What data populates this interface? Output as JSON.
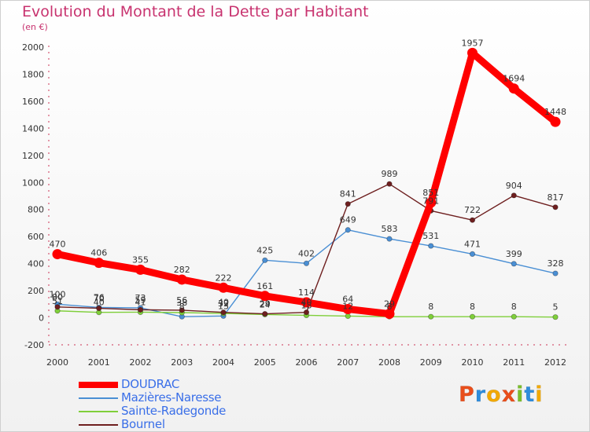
{
  "title": "Evolution du Montant de la Dette par Habitant",
  "unit": "(en €)",
  "logo": {
    "letters": [
      "P",
      "r",
      "o",
      "x",
      "i",
      "t",
      "i"
    ],
    "colors": [
      "#e94e1b",
      "#2f8ddc",
      "#f2a900",
      "#e94e1b",
      "#7bbf2a",
      "#2f8ddc",
      "#f2a900"
    ]
  },
  "chart_data": {
    "type": "line",
    "x": [
      "2000",
      "2001",
      "2002",
      "2003",
      "2004",
      "2005",
      "2006",
      "2007",
      "2008",
      "2009",
      "2010",
      "2011",
      "2012"
    ],
    "ylim": [
      -200,
      2000
    ],
    "yticks": [
      "-200",
      "0",
      "200",
      "400",
      "600",
      "800",
      "1000",
      "1200",
      "1400",
      "1600",
      "1800",
      "2000"
    ],
    "grid": false,
    "legend_position": "bottom-left",
    "series": [
      {
        "name": "DOUDRAC",
        "color": "#ff0000",
        "values": [
          470,
          406,
          355,
          282,
          222,
          161,
          114,
          64,
          29,
          851,
          1957,
          1694,
          1448
        ],
        "labels": [
          "470",
          "406",
          "355",
          "282",
          "222",
          "161",
          "114",
          "64",
          "29",
          "851",
          "1957",
          "1694",
          "1448"
        ]
      },
      {
        "name": "Mazières-Naresse",
        "color": "#4a8fd4",
        "values": [
          100,
          76,
          73,
          8,
          13,
          425,
          402,
          649,
          583,
          531,
          471,
          399,
          328
        ],
        "labels": [
          "100",
          "76",
          "73",
          "8",
          "13",
          "425",
          "402",
          "649",
          "583",
          "531",
          "471",
          "399",
          "328"
        ]
      },
      {
        "name": "Sainte-Radegonde",
        "color": "#7fcf3a",
        "values": [
          51,
          40,
          41,
          38,
          32,
          24,
          18,
          12,
          8,
          8,
          8,
          8,
          5
        ],
        "labels": [
          "51",
          "40",
          "41",
          "38",
          "32",
          "24",
          "18",
          "12",
          "8",
          "8",
          "8",
          "8",
          "5"
        ]
      },
      {
        "name": "Bournel",
        "color": "#6e1f1f",
        "values": [
          80,
          70,
          59,
          56,
          40,
          29,
          40,
          841,
          989,
          791,
          722,
          904,
          817
        ],
        "labels": [
          "80",
          "70",
          "59",
          "56",
          "40",
          "29",
          "40",
          "841",
          "989",
          "791",
          "722",
          "904",
          "817"
        ]
      }
    ]
  }
}
